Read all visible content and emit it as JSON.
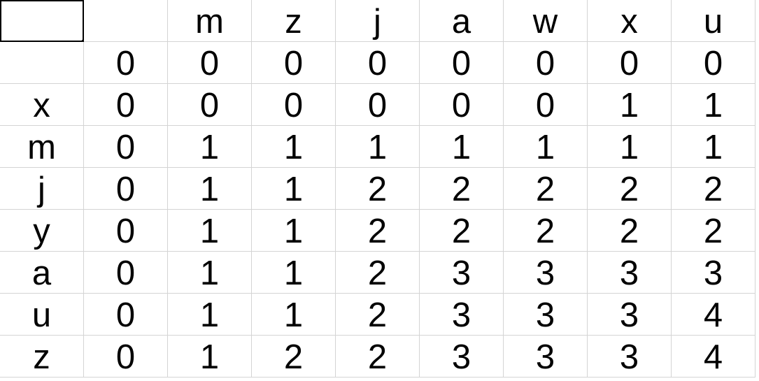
{
  "sheet": {
    "header_row": [
      "",
      "",
      "m",
      "z",
      "j",
      "a",
      "w",
      "x",
      "u"
    ],
    "rows": [
      [
        "",
        "0",
        "0",
        "0",
        "0",
        "0",
        "0",
        "0",
        "0"
      ],
      [
        "x",
        "0",
        "0",
        "0",
        "0",
        "0",
        "0",
        "1",
        "1"
      ],
      [
        "m",
        "0",
        "1",
        "1",
        "1",
        "1",
        "1",
        "1",
        "1"
      ],
      [
        "j",
        "0",
        "1",
        "1",
        "2",
        "2",
        "2",
        "2",
        "2"
      ],
      [
        "y",
        "0",
        "1",
        "1",
        "2",
        "2",
        "2",
        "2",
        "2"
      ],
      [
        "a",
        "0",
        "1",
        "1",
        "2",
        "3",
        "3",
        "3",
        "3"
      ],
      [
        "u",
        "0",
        "1",
        "1",
        "2",
        "3",
        "3",
        "3",
        "4"
      ],
      [
        "z",
        "0",
        "1",
        "2",
        "2",
        "3",
        "3",
        "3",
        "4"
      ]
    ],
    "grid_color": "#d4d4d4",
    "selection_color": "#000000"
  }
}
